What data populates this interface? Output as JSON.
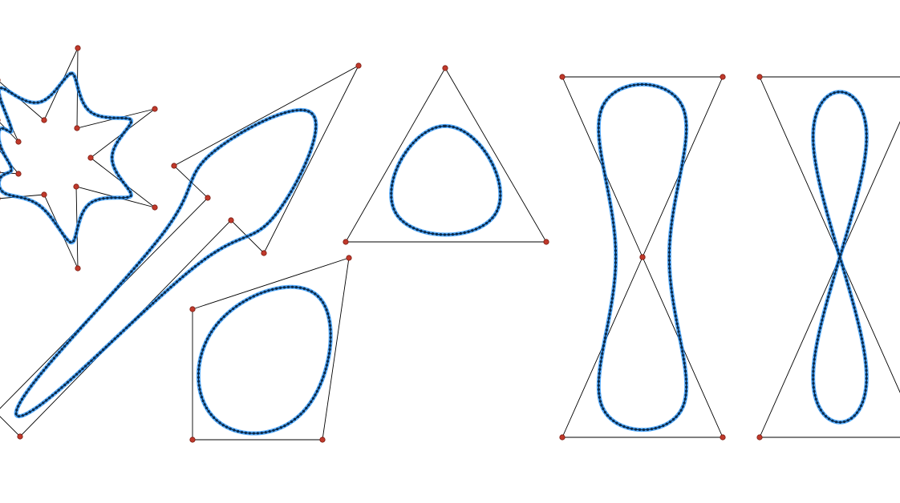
{
  "colors": {
    "background": "#ffffff",
    "control_polygon": "#000000",
    "control_point": "#c0392b",
    "control_point_stroke": "#7a1c12",
    "curve_glow": "#1e90ff",
    "curve_sample_dot": "#0a2a4a"
  },
  "shapes": [
    {
      "name": "star-spline"
    },
    {
      "name": "arrow-spline"
    },
    {
      "name": "triangle-spline"
    },
    {
      "name": "quad-spline"
    },
    {
      "name": "hourglass-spline"
    },
    {
      "name": "figure-eight-spline"
    }
  ]
}
